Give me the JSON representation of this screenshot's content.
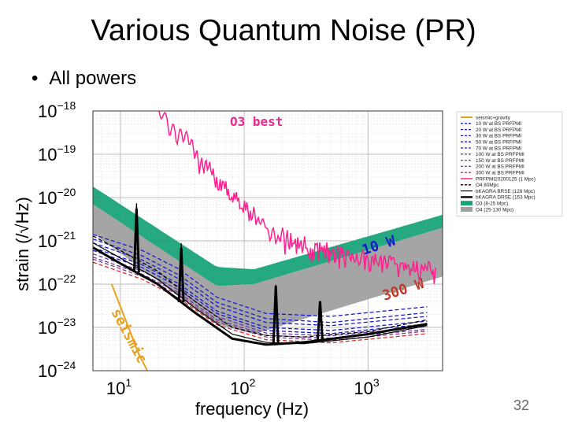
{
  "slide": {
    "title": "Various Quantum Noise (PR)",
    "bullet": "All powers",
    "page_number": "32"
  },
  "chart_data": {
    "type": "line",
    "x_scale": "log",
    "y_scale": "log",
    "xlim": [
      6,
      4000
    ],
    "ylim": [
      1e-24,
      1e-18
    ],
    "xlabel": "frequency (Hz)",
    "ylabel": "strain (/√Hz)",
    "x_ticks": [
      {
        "value": 10,
        "base": "10",
        "exp": "1"
      },
      {
        "value": 100,
        "base": "10",
        "exp": "2"
      },
      {
        "value": 1000,
        "base": "10",
        "exp": "3"
      }
    ],
    "y_ticks": [
      {
        "value": 1e-18,
        "base": "10",
        "exp": "−18"
      },
      {
        "value": 1e-19,
        "base": "10",
        "exp": "−19"
      },
      {
        "value": 1e-20,
        "base": "10",
        "exp": "−20"
      },
      {
        "value": 1e-21,
        "base": "10",
        "exp": "−21"
      },
      {
        "value": 1e-22,
        "base": "10",
        "exp": "−22"
      },
      {
        "value": 1e-23,
        "base": "10",
        "exp": "−23"
      },
      {
        "value": 1e-24,
        "base": "10",
        "exp": "−24"
      }
    ],
    "grid": true,
    "legend_position": "right",
    "annotations": [
      {
        "text": "O3 best",
        "color": "#e8298f"
      },
      {
        "text": "10 W",
        "color": "#1a1acc"
      },
      {
        "text": "300 W",
        "color": "#c0392b"
      },
      {
        "text": "seismic",
        "color": "#e8a020"
      }
    ],
    "bands": [
      {
        "name": "O3 (8-25 Mpc)",
        "color": "#1aa37a",
        "x": [
          6,
          60,
          120,
          4000
        ],
        "upper": [
          1.8e-20,
          2.5e-22,
          2.2e-22,
          4e-21
        ],
        "lower": [
          7e-21,
          9e-23,
          1e-22,
          2e-21
        ]
      },
      {
        "name": "O4 (25-130 Mpc)",
        "color": "#a0a0a0",
        "x": [
          6,
          60,
          120,
          4000
        ],
        "upper": [
          7e-21,
          9e-23,
          1e-22,
          2e-21
        ],
        "lower": [
          1.5e-21,
          1.2e-23,
          7e-24,
          1.5e-22
        ]
      }
    ],
    "series": [
      {
        "name": "seismic+gravity",
        "color": "#e8a020",
        "style": "solid",
        "width": 2,
        "x": [
          8.5,
          11,
          14,
          16.5
        ],
        "y": [
          1e-22,
          1.5e-23,
          2.5e-24,
          1e-24
        ]
      },
      {
        "name": "10 W at BS PRFPMI",
        "color": "#1a1acc",
        "style": "dashed",
        "x": [
          6,
          15,
          30,
          60,
          150,
          500,
          3000
        ],
        "y": [
          1.4e-21,
          6e-22,
          2.2e-22,
          5e-23,
          2.1e-23,
          1.8e-23,
          3e-23
        ]
      },
      {
        "name": "20 W at BS PRFPMI",
        "color": "#1a1acc",
        "style": "dashed",
        "x": [
          6,
          15,
          30,
          60,
          150,
          500,
          3000
        ],
        "y": [
          1.1e-21,
          4.5e-22,
          1.6e-22,
          3.8e-23,
          1.6e-23,
          1.3e-23,
          2.2e-23
        ]
      },
      {
        "name": "30 W at BS PRFPMI",
        "color": "#1a1acc",
        "style": "dashed",
        "x": [
          6,
          15,
          30,
          60,
          150,
          500,
          3000
        ],
        "y": [
          9e-22,
          3.6e-22,
          1.3e-22,
          3.1e-23,
          1.3e-23,
          1.1e-23,
          1.8e-23
        ]
      },
      {
        "name": "50 W at BS PRFPMI",
        "color": "#1a1acc",
        "style": "dashed",
        "x": [
          6,
          15,
          30,
          60,
          150,
          500,
          3000
        ],
        "y": [
          7e-22,
          2.8e-22,
          1e-22,
          2.4e-23,
          1e-23,
          8.5e-24,
          1.4e-23
        ]
      },
      {
        "name": "70 W at BS PRFPMI",
        "color": "#1a1acc",
        "style": "dashed",
        "x": [
          6,
          15,
          30,
          60,
          150,
          500,
          3000
        ],
        "y": [
          6e-22,
          2.4e-22,
          8.5e-23,
          2.1e-23,
          8.5e-24,
          7.2e-24,
          1.2e-23
        ]
      },
      {
        "name": "100 W at BS PRFPMI",
        "color": "#6a3aa0",
        "style": "dashed",
        "x": [
          6,
          15,
          30,
          60,
          150,
          500,
          3000
        ],
        "y": [
          5e-22,
          2e-22,
          7.2e-23,
          1.8e-23,
          7.4e-24,
          6.4e-24,
          1.05e-23
        ]
      },
      {
        "name": "150 W at BS PRFPMI",
        "color": "#6a3aa0",
        "style": "dashed",
        "x": [
          6,
          15,
          30,
          60,
          150,
          500,
          3000
        ],
        "y": [
          4.2e-22,
          1.7e-22,
          6.2e-23,
          1.5e-23,
          6.6e-24,
          5.6e-24,
          9e-24
        ]
      },
      {
        "name": "200 W at BS PRFPMI",
        "color": "#8a3a8a",
        "style": "dashed",
        "x": [
          6,
          15,
          30,
          60,
          150,
          500,
          3000
        ],
        "y": [
          3.8e-22,
          1.5e-22,
          5.5e-23,
          1.35e-23,
          6e-24,
          5e-24,
          8.2e-24
        ]
      },
      {
        "name": "300 W at BS PRFPMI",
        "color": "#d23030",
        "style": "dashed",
        "x": [
          6,
          15,
          30,
          60,
          150,
          500,
          3000
        ],
        "y": [
          3.2e-22,
          1.3e-22,
          4.6e-23,
          1.15e-23,
          5.2e-24,
          4.4e-24,
          7.2e-24
        ]
      },
      {
        "name": "PRFPMI20200125 (1 Mpc)",
        "color": "#ff1f8f",
        "style": "solid",
        "width": 1.5,
        "x": [
          20,
          26,
          35,
          50,
          70,
          100,
          150,
          250,
          500,
          1000,
          2000,
          3500
        ],
        "y": [
          1e-18,
          5e-19,
          2e-19,
          5e-20,
          1.6e-20,
          6e-21,
          2.2e-21,
          9e-22,
          6e-22,
          4e-22,
          2.5e-22,
          2e-22
        ]
      },
      {
        "name": "O4 80Mpc",
        "color": "#000000",
        "style": "dashed",
        "x": [
          6,
          10,
          20,
          40,
          80,
          150,
          300,
          1000,
          3000
        ],
        "y": [
          1.3e-21,
          6e-22,
          2e-22,
          4e-23,
          1e-23,
          6.5e-24,
          6e-24,
          8e-24,
          1.5e-23
        ]
      },
      {
        "name": "bKAGRA BRSE (128 Mpc)",
        "color": "#000000",
        "style": "solid",
        "width": 1.2,
        "x": [
          6,
          10,
          20,
          40,
          80,
          150,
          300,
          1000,
          3000
        ],
        "y": [
          9e-22,
          4e-22,
          1.3e-22,
          2.8e-23,
          7e-24,
          4.5e-24,
          4.2e-24,
          6e-24,
          1.1e-23
        ]
      },
      {
        "name": "bKAGRA DRSE (153 Mpc)",
        "color": "#000000",
        "style": "solid",
        "width": 3,
        "x": [
          6,
          10,
          20,
          40,
          80,
          150,
          300,
          1000,
          3000
        ],
        "y": [
          7e-22,
          3e-22,
          1e-22,
          2.2e-23,
          5.5e-24,
          4e-24,
          4.5e-24,
          7e-24,
          1.2e-23
        ]
      },
      {
        "name": "O3 (8-25 Mpc)",
        "color": "#1aa37a",
        "style": "patch"
      },
      {
        "name": "O4 (25-130 Mpc)",
        "color": "#a0a0a0",
        "style": "patch"
      }
    ],
    "resonances": [
      {
        "f": 13.5,
        "depth": 30
      },
      {
        "f": 31,
        "depth": 18
      },
      {
        "f": 180,
        "depth": 22
      },
      {
        "f": 410,
        "depth": 8
      }
    ]
  }
}
